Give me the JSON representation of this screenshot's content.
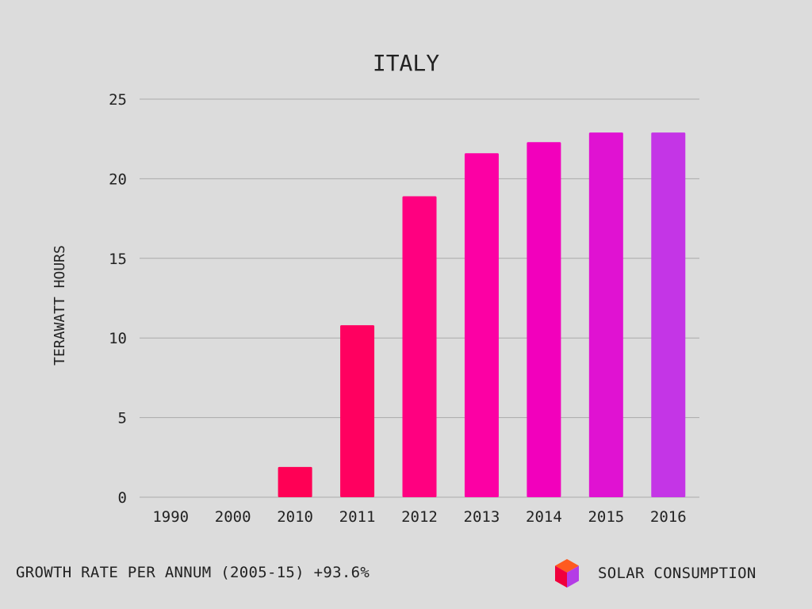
{
  "chart_data": {
    "type": "bar",
    "title": "ITALY",
    "xlabel": "",
    "ylabel": "TERAWATT HOURS",
    "categories": [
      "1990",
      "2000",
      "2010",
      "2011",
      "2012",
      "2013",
      "2014",
      "2015",
      "2016"
    ],
    "values": [
      0,
      0,
      1.9,
      10.8,
      18.9,
      21.6,
      22.3,
      22.9,
      22.9
    ],
    "ylim": [
      0,
      25
    ],
    "yticks": [
      "0",
      "5",
      "10",
      "15",
      "20",
      "25"
    ],
    "grid": true,
    "bar_colors": [
      "#ff0055",
      "#ff0055",
      "#ff0055",
      "#ff0060",
      "#ff0080",
      "#fc00a4",
      "#f200bc",
      "#e012d2",
      "#c435e6"
    ]
  },
  "footer": {
    "growth_text": "GROWTH RATE PER ANNUM (2005-15) +93.6%",
    "brand_label": "SOLAR CONSUMPTION",
    "brand_icon": "cube-icon"
  },
  "colors": {
    "background": "#dcdcdc",
    "text": "#222222",
    "grid": "#aaaaaa"
  }
}
